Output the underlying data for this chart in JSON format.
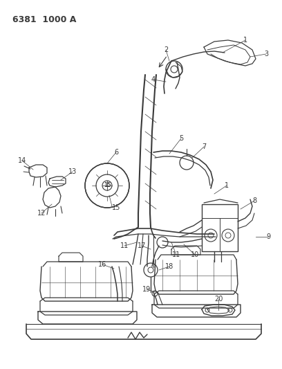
{
  "title": "6381  1000 A",
  "bg_color": "#ffffff",
  "line_color": "#3a3a3a",
  "title_fontsize": 9,
  "label_fontsize": 7,
  "fig_width": 4.08,
  "fig_height": 5.33,
  "dpi": 100
}
